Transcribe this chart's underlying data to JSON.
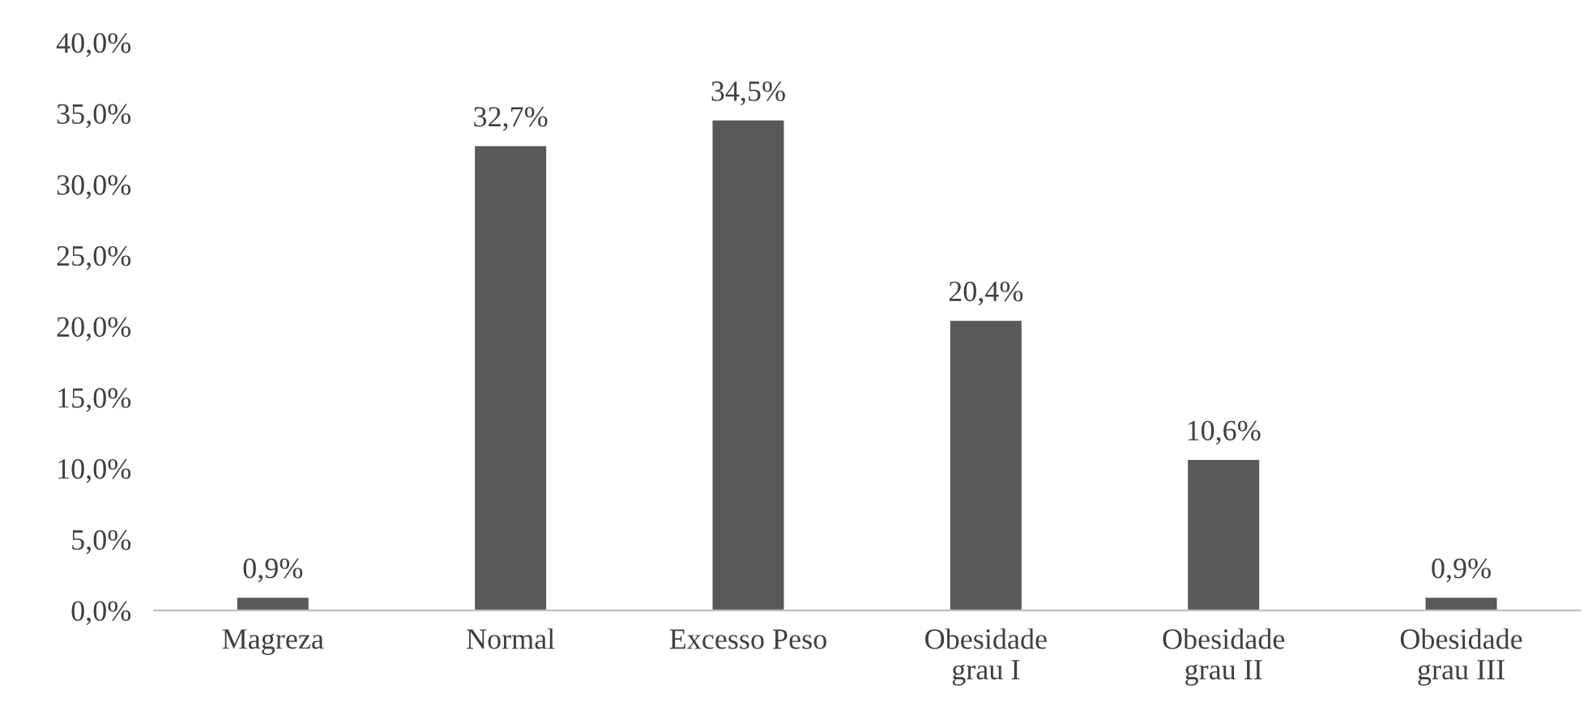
{
  "chart_data": {
    "type": "bar",
    "categories": [
      "Magreza",
      "Normal",
      "Excesso Peso",
      "Obesidade\ngrau I",
      "Obesidade\ngrau II",
      "Obesidade\ngrau III"
    ],
    "values": [
      0.9,
      32.7,
      34.5,
      20.4,
      10.6,
      0.9
    ],
    "value_labels": [
      "0,9%",
      "32,7%",
      "34,5%",
      "20,4%",
      "10,6%",
      "0,9%"
    ],
    "color": "#595959",
    "ylim": [
      0,
      40
    ],
    "yticks": [
      {
        "value": 0,
        "label": "0,0%"
      },
      {
        "value": 5,
        "label": "5,0%"
      },
      {
        "value": 10,
        "label": "10,0%"
      },
      {
        "value": 15,
        "label": "15,0%"
      },
      {
        "value": 20,
        "label": "20,0%"
      },
      {
        "value": 25,
        "label": "25,0%"
      },
      {
        "value": 30,
        "label": "30,0%"
      },
      {
        "value": 35,
        "label": "35,0%"
      },
      {
        "value": 40,
        "label": "40,0%"
      }
    ],
    "grid": false,
    "legend": false
  }
}
